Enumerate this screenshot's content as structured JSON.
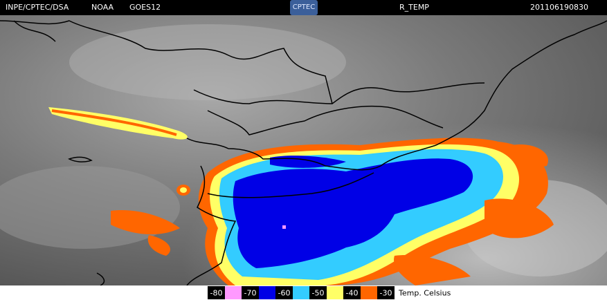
{
  "header": {
    "source": "INPE/CPTEC/DSA",
    "agency": "NOAA",
    "satellite": "GOES12",
    "logo": "CPTEC",
    "product": "R_TEMP",
    "timestamp": "201106190830"
  },
  "legend": {
    "items": [
      {
        "label": "-80",
        "color": "#ff99ff"
      },
      {
        "label": "-70",
        "color": "#0000e6"
      },
      {
        "label": "-60",
        "color": "#33ccff"
      },
      {
        "label": "-50",
        "color": "#ffff66"
      },
      {
        "label": "-40",
        "color": "#ff6600"
      },
      {
        "label": "-30"
      }
    ],
    "unit": "Temp. Celsius"
  }
}
